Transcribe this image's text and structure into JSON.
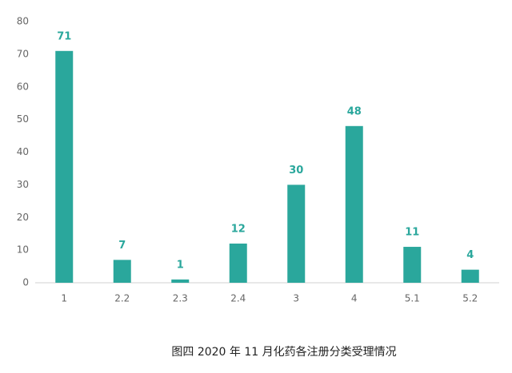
{
  "chart_data": {
    "type": "bar",
    "title": "图四  2020 年 11 月化药各注册分类受理情况",
    "categories": [
      "1",
      "2.2",
      "2.3",
      "2.4",
      "3",
      "4",
      "5.1",
      "5.2"
    ],
    "values": [
      71,
      7,
      1,
      12,
      30,
      48,
      11,
      4
    ],
    "color": "#2aa79c",
    "ylim": [
      0,
      80
    ],
    "yticks": [
      0,
      10,
      20,
      30,
      40,
      50,
      60,
      70,
      80
    ],
    "grid": false
  }
}
